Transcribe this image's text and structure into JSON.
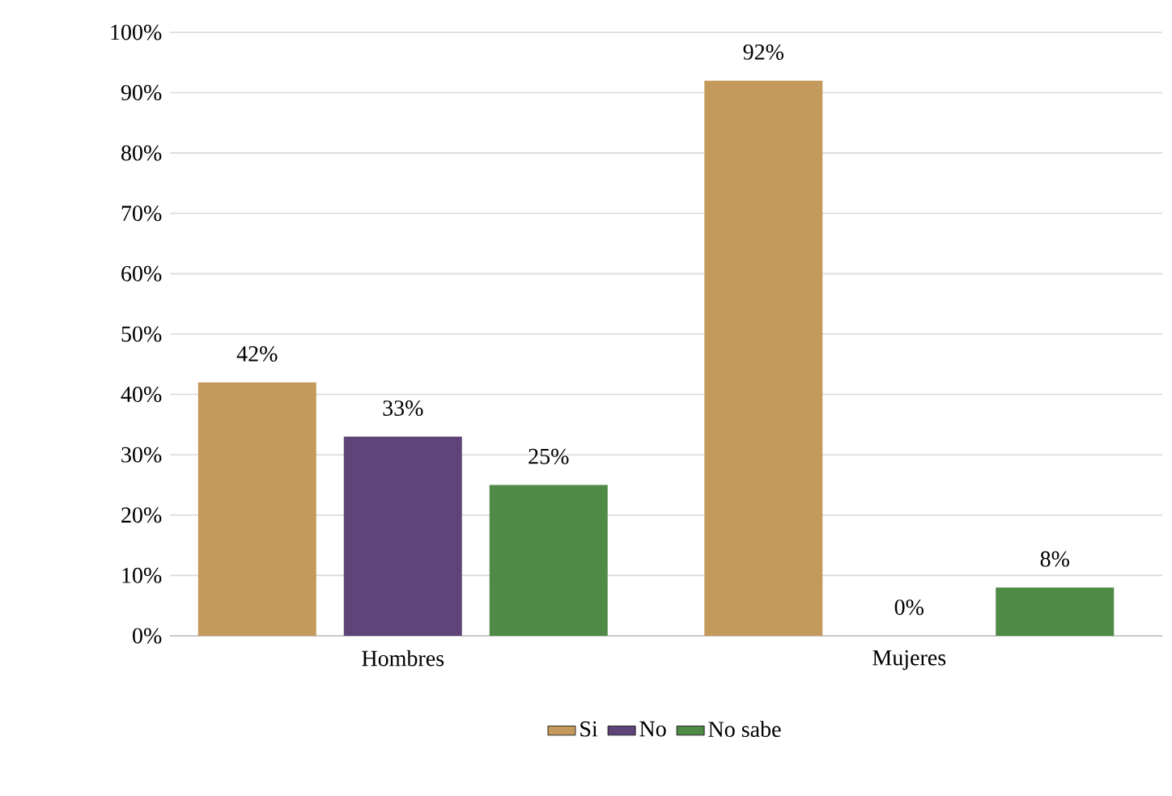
{
  "chart_data": {
    "type": "bar",
    "categories": [
      "Hombres",
      "Mujeres"
    ],
    "series": [
      {
        "name": "Si",
        "color": "#c49a5c",
        "values": [
          42,
          92
        ],
        "value_labels": [
          "42%",
          "92%"
        ]
      },
      {
        "name": "No",
        "color": "#5e4478",
        "values": [
          33,
          0
        ],
        "value_labels": [
          "33%",
          "0%"
        ]
      },
      {
        "name": "No sabe",
        "color": "#4f8a46",
        "values": [
          25,
          8
        ],
        "value_labels": [
          "25%",
          "8%"
        ]
      }
    ],
    "ylim": [
      0,
      100
    ],
    "yticks": [
      {
        "value": 0,
        "label": "0%"
      },
      {
        "value": 10,
        "label": "10%"
      },
      {
        "value": 20,
        "label": "20%"
      },
      {
        "value": 30,
        "label": "30%"
      },
      {
        "value": 40,
        "label": "40%"
      },
      {
        "value": 50,
        "label": "50%"
      },
      {
        "value": 60,
        "label": "60%"
      },
      {
        "value": 70,
        "label": "70%"
      },
      {
        "value": 80,
        "label": "80%"
      },
      {
        "value": 90,
        "label": "90%"
      },
      {
        "value": 100,
        "label": "100%"
      }
    ],
    "grid": "y",
    "legend": "bottom"
  }
}
